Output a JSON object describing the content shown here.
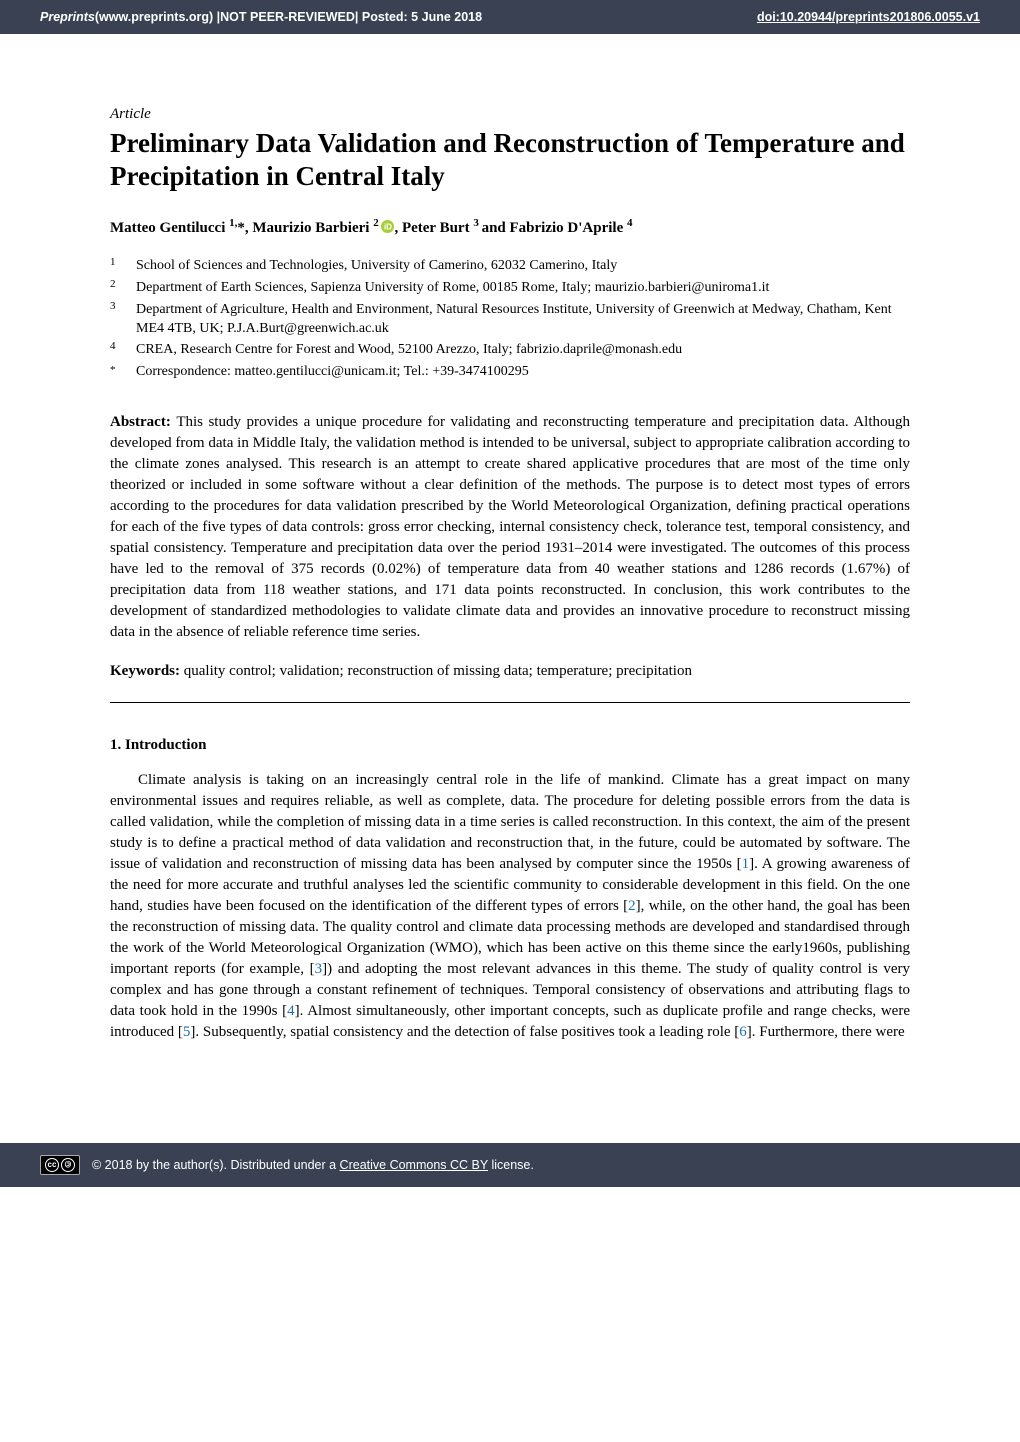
{
  "banner": {
    "site": "Preprints",
    "url_label": " (www.preprints.org)  |  ",
    "npr": "NOT PEER-REVIEWED",
    "posted": "  |  Posted: 5 June 2018",
    "doi_label": "doi:10.20944/preprints201806.0055.v1"
  },
  "article_type": "Article",
  "title": "Preliminary Data Validation and Reconstruction of Temperature and Precipitation in Central Italy",
  "authors": {
    "a1": "Matteo Gentilucci ",
    "a1_sup": "1,",
    "a1_star": "*, ",
    "a2": "Maurizio Barbieri ",
    "a2_sup": "2 ",
    "a3": ", Peter Burt ",
    "a3_sup": "3 ",
    "a4": "and Fabrizio D'Aprile ",
    "a4_sup": "4"
  },
  "affiliations": [
    {
      "num": "1",
      "text": "School of Sciences and Technologies, University of Camerino, 62032 Camerino, Italy"
    },
    {
      "num": "2",
      "text": "Department of Earth Sciences, Sapienza University of Rome, 00185 Rome, Italy; maurizio.barbieri@uniroma1.it"
    },
    {
      "num": "3",
      "text": "Department of Agriculture, Health and Environment, Natural Resources Institute, University of Greenwich at Medway, Chatham, Kent ME4 4TB, UK; P.J.A.Burt@greenwich.ac.uk"
    },
    {
      "num": "4",
      "text": "CREA, Research Centre for Forest and Wood, 52100 Arezzo, Italy; fabrizio.daprile@monash.edu"
    },
    {
      "num": "*",
      "text": "Correspondence: matteo.gentilucci@unicam.it; Tel.: +39-3474100295"
    }
  ],
  "abstract_label": "Abstract: ",
  "abstract_text": "This study provides a unique procedure for validating and reconstructing temperature and precipitation data. Although developed from data in Middle Italy, the validation method is intended to be universal, subject to appropriate calibration according to the climate zones analysed. This research is an attempt to create shared applicative procedures that are most of the time only theorized or included in some software without a clear definition of the methods. The purpose is to detect most types of errors according to the procedures for data validation prescribed by the World Meteorological Organization, defining practical operations for each of the five types of data controls: gross error checking, internal consistency check, tolerance test, temporal consistency, and spatial consistency. Temperature and precipitation data over the period 1931–2014 were investigated. The outcomes of this process have led to the removal of 375 records (0.02%) of temperature data from 40 weather stations and 1286 records (1.67%) of precipitation data from 118 weather stations, and 171 data points reconstructed. In conclusion, this work contributes to the development of standardized methodologies to validate climate data and provides an innovative procedure to reconstruct missing data in the absence of reliable reference time series.",
  "keywords_label": "Keywords: ",
  "keywords_text": "quality control; validation; reconstruction of missing data; temperature; precipitation",
  "section1_head": "1. Introduction",
  "intro_p1a": "Climate analysis is taking on an increasingly central role in the life of mankind. Climate has a great impact on many environmental issues and requires reliable, as well as complete, data. The procedure for deleting possible errors from the data is called validation, while the completion of missing data in a time series is called reconstruction. In this context, the aim of the present study is to define a practical method of data validation and reconstruction that, in the future, could be automated by software. The issue of validation and reconstruction of missing data has been analysed by computer since the 1950s [",
  "intro_c1": "1",
  "intro_p1b": "]. A growing awareness of the need for more accurate and truthful analyses led the scientific community to considerable development in this field. On the one hand, studies have been focused on the identification of the different types of errors [",
  "intro_c2": "2",
  "intro_p1c": "], while, on the other hand, the goal has been the reconstruction of missing data. The quality control and climate data processing methods are developed and standardised through the work of the World Meteorological Organization (WMO), which has been active on this theme since the early1960s, publishing important reports (for example, [",
  "intro_c3": "3",
  "intro_p1d": "]) and adopting the most relevant advances in this theme. The study of quality control is very complex and has gone through a constant refinement of techniques. Temporal consistency of observations and attributing flags to data took hold in the 1990s [",
  "intro_c4": "4",
  "intro_p1e": "]. Almost simultaneously, other important concepts, such as duplicate profile and range checks, were introduced [",
  "intro_c5": "5",
  "intro_p1f": "]. Subsequently, spatial consistency and the detection of false positives took a leading role [",
  "intro_c6": "6",
  "intro_p1g": "]. Furthermore, there were",
  "footer": {
    "copyright": "© 2018 by the author(s). Distributed under a ",
    "license_link": "Creative Commons CC BY",
    "license_tail": " license."
  }
}
